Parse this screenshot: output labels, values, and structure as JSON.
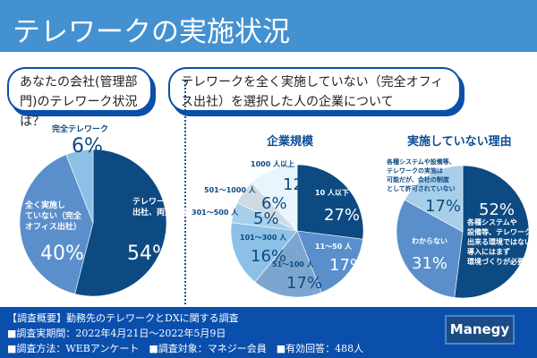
{
  "header": {
    "title": "テレワークの実施状況"
  },
  "bubbles": {
    "q1": "あなたの会社(管理部門)のテレワーク状況は？",
    "q2": "テレワークを全く実施していない（完全オフィス出社）を選択した人の企業について"
  },
  "chart_data": [
    {
      "type": "pie",
      "title": "",
      "slices": [
        {
          "label": "テレワークと出社、両方ある",
          "value": 54,
          "display": "54%",
          "color": "#0d4a82"
        },
        {
          "label": "全く実施していない（完全オフィス出社）",
          "value": 40,
          "display": "40%",
          "color": "#5a8fcc"
        },
        {
          "label": "完全テレワーク",
          "value": 6,
          "display": "6%",
          "color": "#8cc0e6"
        }
      ]
    },
    {
      "type": "pie",
      "title": "企業規模",
      "slices": [
        {
          "label": "10 人以下",
          "value": 27,
          "display": "27%",
          "color": "#0d4a82"
        },
        {
          "label": "11～50 人",
          "value": 17,
          "display": "17%",
          "color": "#5a8fcc"
        },
        {
          "label": "51～100 人",
          "value": 17,
          "display": "17%",
          "color": "#7ca6cf"
        },
        {
          "label": "101～300 人",
          "value": 16,
          "display": "16%",
          "color": "#8cc0e6"
        },
        {
          "label": "301～500 人",
          "value": 5,
          "display": "5%",
          "color": "#a8cfe9"
        },
        {
          "label": "501～1000 人",
          "value": 6,
          "display": "6%",
          "color": "#cfdbe3"
        },
        {
          "label": "1000 人以上",
          "value": 12,
          "display": "12%",
          "color": "#e8f5fc"
        }
      ]
    },
    {
      "type": "pie",
      "title": "実施していない理由",
      "slices": [
        {
          "label": "各種システムや設備等、テレワーク出来る環境ではない。導入にはまず環境づくりが必要",
          "value": 52,
          "display": "52%",
          "color": "#0d4a82"
        },
        {
          "label": "わからない",
          "value": 31,
          "display": "31%",
          "color": "#5a8fcc"
        },
        {
          "label": "各種システムや設備等、テレワークの実施は可能だが、会社の制度として許可されていない",
          "value": 17,
          "display": "17%",
          "color": "#a8cfe9"
        }
      ]
    }
  ],
  "footer": {
    "lines": [
      "【調査概要】勤務先のテレワークとDXに関する調査",
      "■調査実期間：2022年4月21日～2022年5月9日",
      "■調査方法：WEBアンケート　■調査対象：マネジー会員　■有効回答：488人"
    ],
    "logo": "Manegy"
  }
}
